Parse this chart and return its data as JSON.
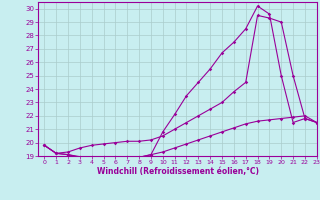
{
  "xlabel": "Windchill (Refroidissement éolien,°C)",
  "bg_color": "#c8eef0",
  "line_color": "#990099",
  "grid_color": "#aacccc",
  "xlim": [
    -0.5,
    23
  ],
  "ylim": [
    19,
    30.5
  ],
  "yticks": [
    19,
    20,
    21,
    22,
    23,
    24,
    25,
    26,
    27,
    28,
    29,
    30
  ],
  "xticks": [
    0,
    1,
    2,
    3,
    4,
    5,
    6,
    7,
    8,
    9,
    10,
    11,
    12,
    13,
    14,
    15,
    16,
    17,
    18,
    19,
    20,
    21,
    22,
    23
  ],
  "line1_x": [
    0,
    1,
    2,
    3,
    4,
    5,
    6,
    7,
    8,
    9,
    10,
    11,
    12,
    13,
    14,
    15,
    16,
    17,
    18,
    19,
    20,
    21,
    22,
    23
  ],
  "line1_y": [
    19.8,
    19.2,
    19.1,
    18.95,
    18.9,
    18.9,
    18.9,
    18.9,
    18.9,
    19.1,
    20.8,
    22.1,
    23.5,
    24.5,
    25.5,
    26.7,
    27.5,
    28.5,
    30.2,
    29.6,
    25.0,
    21.5,
    21.8,
    21.5
  ],
  "line2_x": [
    0,
    1,
    2,
    3,
    4,
    5,
    6,
    7,
    8,
    9,
    10,
    11,
    12,
    13,
    14,
    15,
    16,
    17,
    18,
    19,
    20,
    21,
    22,
    23
  ],
  "line2_y": [
    19.8,
    19.2,
    19.3,
    19.6,
    19.8,
    19.9,
    20.0,
    20.1,
    20.1,
    20.2,
    20.5,
    21.0,
    21.5,
    22.0,
    22.5,
    23.0,
    23.8,
    24.5,
    29.5,
    29.3,
    29.0,
    25.0,
    21.8,
    21.5
  ],
  "line3_x": [
    0,
    1,
    2,
    3,
    4,
    5,
    6,
    7,
    8,
    9,
    10,
    11,
    12,
    13,
    14,
    15,
    16,
    17,
    18,
    19,
    20,
    21,
    22,
    23
  ],
  "line3_y": [
    19.8,
    19.2,
    19.1,
    18.9,
    18.9,
    18.9,
    18.9,
    18.9,
    18.9,
    19.1,
    19.3,
    19.6,
    19.9,
    20.2,
    20.5,
    20.8,
    21.1,
    21.4,
    21.6,
    21.7,
    21.8,
    21.9,
    22.0,
    21.5
  ]
}
